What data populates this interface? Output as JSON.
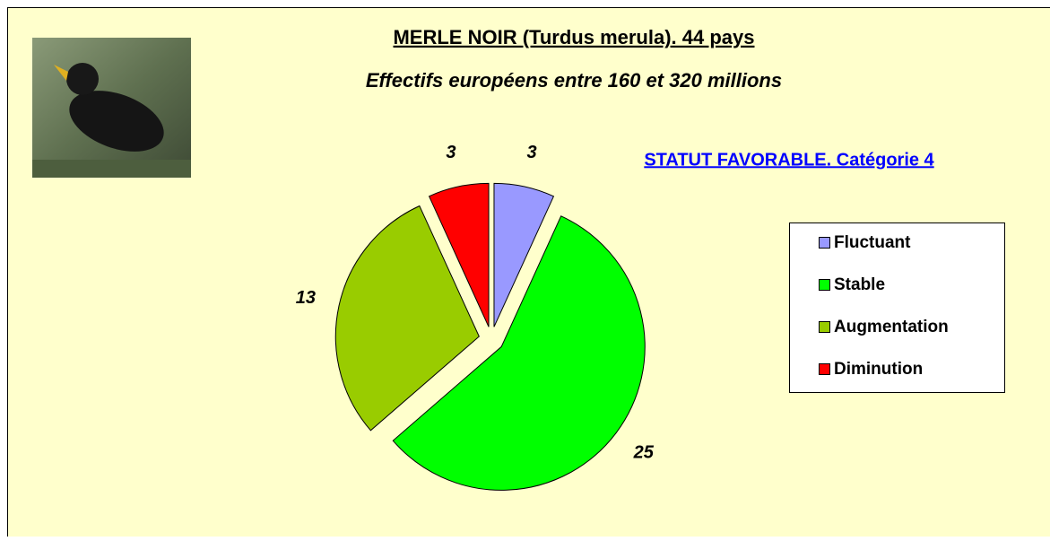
{
  "chart_data": {
    "type": "pie",
    "title": "MERLE NOIR (Turdus merula). 44 pays",
    "subtitle": "Effectifs européens entre 160 et 320 millions",
    "annotation": "STATUT FAVORABLE. Catégorie 4",
    "categories": [
      "Fluctuant",
      "Stable",
      "Augmentation",
      "Diminution"
    ],
    "values": [
      3,
      25,
      13,
      3
    ],
    "colors": [
      "#9999ff",
      "#00ff00",
      "#99cc00",
      "#ff0000"
    ],
    "legend": "right"
  }
}
